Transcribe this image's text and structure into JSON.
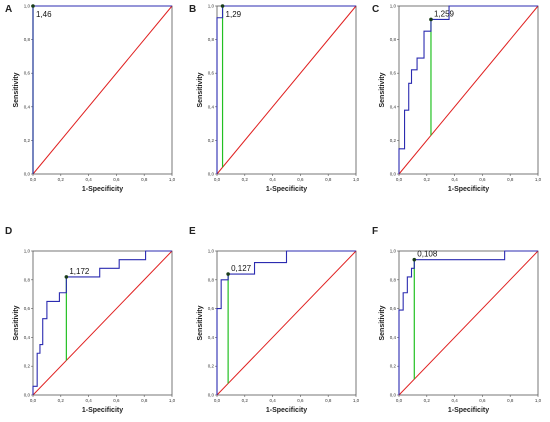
{
  "chart_data": [
    {
      "type": "line",
      "panel": "A",
      "xlabel": "1-Specificity",
      "ylabel": "Sensitivity",
      "xlim": [
        0,
        1
      ],
      "ylim": [
        0,
        1
      ],
      "xticks": [
        "0,0",
        "0,2",
        "0,4",
        "0,6",
        "0,8",
        "1,0"
      ],
      "yticks": [
        "0,0",
        "0,2",
        "0,4",
        "0,6",
        "0,8",
        "1,0"
      ],
      "roc": [
        [
          0,
          0
        ],
        [
          0,
          1
        ],
        [
          1,
          1
        ]
      ],
      "cutoff": {
        "label": "1,46",
        "x": 0.0,
        "y": 1.0
      },
      "colors": {
        "roc": "#2b2bb0",
        "reference": "#e02020",
        "cutoff": "#22c022"
      }
    },
    {
      "type": "line",
      "panel": "B",
      "xlabel": "1-Specificity",
      "ylabel": "Sensitivity",
      "xlim": [
        0,
        1
      ],
      "ylim": [
        0,
        1
      ],
      "xticks": [
        "0,0",
        "0,2",
        "0,4",
        "0,6",
        "0,8",
        "1,0"
      ],
      "yticks": [
        "0,0",
        "0,2",
        "0,4",
        "0,6",
        "0,8",
        "1,0"
      ],
      "roc": [
        [
          0,
          0
        ],
        [
          0,
          0.93
        ],
        [
          0.04,
          0.93
        ],
        [
          0.04,
          1
        ],
        [
          1,
          1
        ]
      ],
      "cutoff": {
        "label": "1,29",
        "x": 0.04,
        "y": 1.0
      },
      "colors": {
        "roc": "#2b2bb0",
        "reference": "#e02020",
        "cutoff": "#22c022"
      }
    },
    {
      "type": "line",
      "panel": "C",
      "xlabel": "1-Specificity",
      "ylabel": "Sensitivity",
      "xlim": [
        0,
        1
      ],
      "ylim": [
        0,
        1
      ],
      "xticks": [
        "0,0",
        "0,2",
        "0,4",
        "0,6",
        "0,8",
        "1,0"
      ],
      "yticks": [
        "0,0",
        "0,2",
        "0,4",
        "0,6",
        "0,8",
        "1,0"
      ],
      "roc": [
        [
          0,
          0
        ],
        [
          0,
          0.15
        ],
        [
          0.04,
          0.15
        ],
        [
          0.04,
          0.38
        ],
        [
          0.07,
          0.38
        ],
        [
          0.07,
          0.54
        ],
        [
          0.09,
          0.54
        ],
        [
          0.09,
          0.62
        ],
        [
          0.13,
          0.62
        ],
        [
          0.13,
          0.69
        ],
        [
          0.18,
          0.69
        ],
        [
          0.18,
          0.85
        ],
        [
          0.23,
          0.85
        ],
        [
          0.23,
          0.92
        ],
        [
          0.36,
          0.92
        ],
        [
          0.36,
          1
        ],
        [
          1,
          1
        ]
      ],
      "cutoff": {
        "label": "1,259",
        "x": 0.23,
        "y": 0.92
      },
      "colors": {
        "roc": "#2b2bb0",
        "reference": "#e02020",
        "cutoff": "#22c022"
      }
    },
    {
      "type": "line",
      "panel": "D",
      "xlabel": "1-Specificity",
      "ylabel": "Sensitivity",
      "xlim": [
        0,
        1
      ],
      "ylim": [
        0,
        1
      ],
      "xticks": [
        "0,0",
        "0,2",
        "0,4",
        "0,6",
        "0,8",
        "1,0"
      ],
      "yticks": [
        "0,0",
        "0,2",
        "0,4",
        "0,6",
        "0,8",
        "1,0"
      ],
      "roc": [
        [
          0,
          0
        ],
        [
          0,
          0.06
        ],
        [
          0.03,
          0.06
        ],
        [
          0.03,
          0.29
        ],
        [
          0.05,
          0.29
        ],
        [
          0.05,
          0.35
        ],
        [
          0.07,
          0.35
        ],
        [
          0.07,
          0.53
        ],
        [
          0.1,
          0.53
        ],
        [
          0.1,
          0.65
        ],
        [
          0.19,
          0.65
        ],
        [
          0.19,
          0.71
        ],
        [
          0.24,
          0.71
        ],
        [
          0.24,
          0.82
        ],
        [
          0.48,
          0.82
        ],
        [
          0.48,
          0.88
        ],
        [
          0.62,
          0.88
        ],
        [
          0.62,
          0.94
        ],
        [
          0.81,
          0.94
        ],
        [
          0.81,
          1
        ],
        [
          1,
          1
        ]
      ],
      "cutoff": {
        "label": "1,172",
        "x": 0.24,
        "y": 0.82
      },
      "colors": {
        "roc": "#2b2bb0",
        "reference": "#e02020",
        "cutoff": "#22c022"
      }
    },
    {
      "type": "line",
      "panel": "E",
      "xlabel": "1-Specificity",
      "ylabel": "Sensitivity",
      "xlim": [
        0,
        1
      ],
      "ylim": [
        0,
        1
      ],
      "xticks": [
        "0,0",
        "0,2",
        "0,4",
        "0,6",
        "0,8",
        "1,0"
      ],
      "yticks": [
        "0,0",
        "0,2",
        "0,4",
        "0,6",
        "0,8",
        "1,0"
      ],
      "roc": [
        [
          0,
          0
        ],
        [
          0,
          0.6
        ],
        [
          0.03,
          0.6
        ],
        [
          0.03,
          0.8
        ],
        [
          0.08,
          0.8
        ],
        [
          0.08,
          0.84
        ],
        [
          0.27,
          0.84
        ],
        [
          0.27,
          0.92
        ],
        [
          0.5,
          0.92
        ],
        [
          0.5,
          1
        ],
        [
          1,
          1
        ]
      ],
      "cutoff": {
        "label": "0,127",
        "x": 0.08,
        "y": 0.84
      },
      "colors": {
        "roc": "#2b2bb0",
        "reference": "#e02020",
        "cutoff": "#22c022"
      }
    },
    {
      "type": "line",
      "panel": "F",
      "xlabel": "1-Specificity",
      "ylabel": "Sensitivity",
      "xlim": [
        0,
        1
      ],
      "ylim": [
        0,
        1
      ],
      "xticks": [
        "0,0",
        "0,2",
        "0,4",
        "0,6",
        "0,8",
        "1,0"
      ],
      "yticks": [
        "0,0",
        "0,2",
        "0,4",
        "0,6",
        "0,8",
        "1,0"
      ],
      "roc": [
        [
          0,
          0
        ],
        [
          0,
          0.59
        ],
        [
          0.03,
          0.59
        ],
        [
          0.03,
          0.71
        ],
        [
          0.06,
          0.71
        ],
        [
          0.06,
          0.82
        ],
        [
          0.09,
          0.82
        ],
        [
          0.09,
          0.88
        ],
        [
          0.11,
          0.88
        ],
        [
          0.11,
          0.94
        ],
        [
          0.76,
          0.94
        ],
        [
          0.76,
          1
        ],
        [
          1,
          1
        ]
      ],
      "cutoff": {
        "label": "0,108",
        "x": 0.11,
        "y": 0.94
      },
      "colors": {
        "roc": "#2b2bb0",
        "reference": "#e02020",
        "cutoff": "#22c022"
      }
    }
  ]
}
